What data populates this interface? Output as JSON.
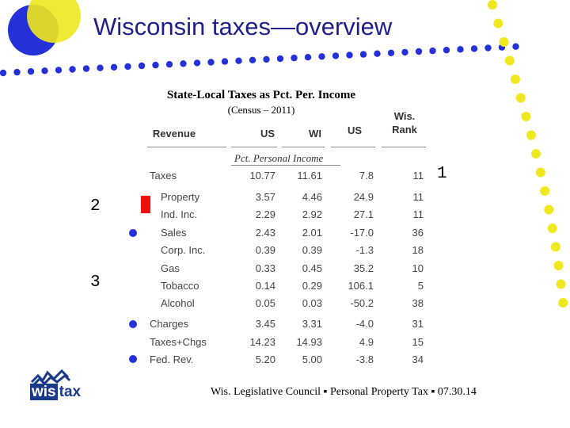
{
  "slide": {
    "title": "Wisconsin taxes—overview",
    "accent_blue": "#2431d8",
    "accent_yellow": "#f0e81e",
    "marker_red": "#ee1111"
  },
  "table": {
    "title": "State-Local Taxes as Pct. Per. Income",
    "subtitle": "(Census – 2011)",
    "headers": {
      "revenue": "Revenue",
      "us": "US",
      "wi": "WI",
      "us2": "US",
      "rank_line1": "Wis.",
      "rank_line2": "Rank"
    },
    "unit_label": "Pct. Personal Income",
    "rows": [
      {
        "label": "Taxes",
        "us": "10.77",
        "wi": "11.61",
        "pct": "7.8",
        "rank": "11"
      },
      {
        "label": "Property",
        "us": "3.57",
        "wi": "4.46",
        "pct": "24.9",
        "rank": "11"
      },
      {
        "label": "Ind. Inc.",
        "us": "2.29",
        "wi": "2.92",
        "pct": "27.1",
        "rank": "11"
      },
      {
        "label": "Sales",
        "us": "2.43",
        "wi": "2.01",
        "pct": "-17.0",
        "rank": "36"
      },
      {
        "label": "Corp. Inc.",
        "us": "0.39",
        "wi": "0.39",
        "pct": "-1.3",
        "rank": "18"
      },
      {
        "label": "Gas",
        "us": "0.33",
        "wi": "0.45",
        "pct": "35.2",
        "rank": "10"
      },
      {
        "label": "Tobacco",
        "us": "0.14",
        "wi": "0.29",
        "pct": "106.1",
        "rank": "5"
      },
      {
        "label": "Alcohol",
        "us": "0.05",
        "wi": "0.03",
        "pct": "-50.2",
        "rank": "38"
      },
      {
        "label": "Charges",
        "us": "3.45",
        "wi": "3.31",
        "pct": "-4.0",
        "rank": "31"
      },
      {
        "label": "Taxes+Chgs",
        "us": "14.23",
        "wi": "14.93",
        "pct": "4.9",
        "rank": "15"
      },
      {
        "label": "Fed. Rev.",
        "us": "5.20",
        "wi": "5.00",
        "pct": "-3.8",
        "rank": "34"
      }
    ]
  },
  "markers": {
    "one": "1",
    "two": "2",
    "three": "3"
  },
  "footer": {
    "text": "Wis. Legislative Council ▪ Personal Property Tax ▪ 07.30.14"
  },
  "logo": {
    "part1": "wis",
    "part2": "tax"
  }
}
